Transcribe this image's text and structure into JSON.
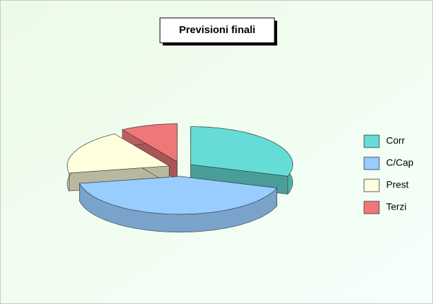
{
  "chart_data": {
    "type": "pie3d",
    "title": "Previsioni finali",
    "categories": [
      "Corr",
      "C/Cap",
      "Prest",
      "Terzi"
    ],
    "values": [
      30,
      42,
      19,
      9
    ],
    "colors": [
      "#66dcd6",
      "#99ccff",
      "#ffffdd",
      "#ee7777"
    ],
    "legend": "right"
  }
}
